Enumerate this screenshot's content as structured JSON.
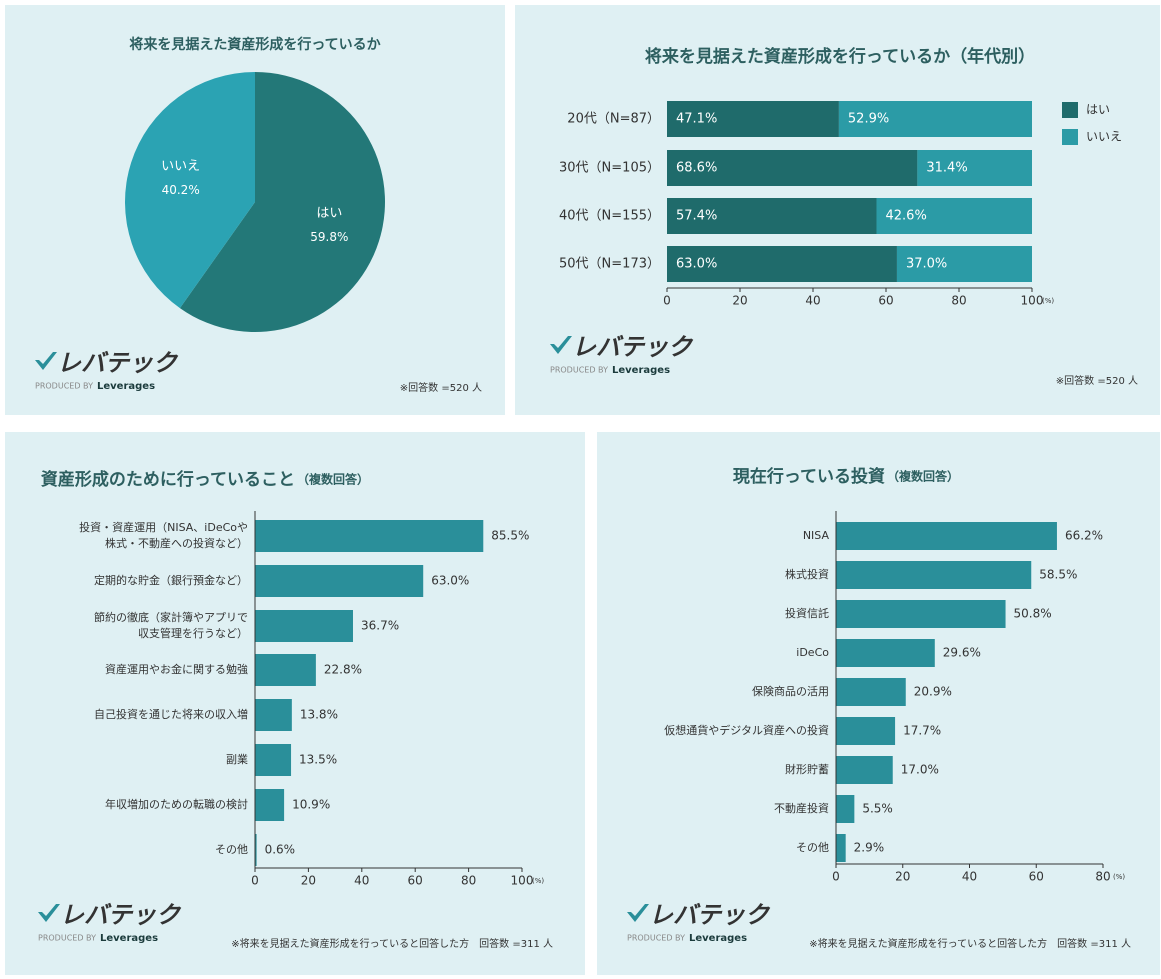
{
  "chart_data": [
    {
      "type": "pie",
      "title": "将来を見据えた資産形成を行っているか",
      "categories": [
        "はい",
        "いいえ"
      ],
      "values": [
        59.8,
        40.2
      ],
      "value_labels": [
        "59.8%",
        "40.2%"
      ],
      "colors": [
        "#237878",
        "#2ba3b3"
      ],
      "logo": "レバテック",
      "produced_by": "PRODUCED BY",
      "brand": "Leverages",
      "note": "※回答数 =520 人"
    },
    {
      "type": "stacked_barh",
      "title": "将来を見据えた資産形成を行っているか（年代別）",
      "categories": [
        "20代（N=87）",
        "30代（N=105）",
        "40代（N=155）",
        "50代（N=173）"
      ],
      "series": [
        {
          "name": "はい",
          "color": "#1f6b6b",
          "values": [
            47.1,
            68.6,
            57.4,
            63.0
          ],
          "value_labels": [
            "47.1%",
            "68.6%",
            "57.4%",
            "63.0%"
          ]
        },
        {
          "name": "いいえ",
          "color": "#2b9ba6",
          "values": [
            52.9,
            31.4,
            42.6,
            37.0
          ],
          "value_labels": [
            "52.9%",
            "31.4%",
            "42.6%",
            "37.0%"
          ]
        }
      ],
      "xlim": [
        0,
        100
      ],
      "xticks": [
        0,
        20,
        40,
        60,
        80,
        100
      ],
      "x_unit": "(%)",
      "legend": "right",
      "logo": "レバテック",
      "produced_by": "PRODUCED BY",
      "brand": "Leverages",
      "note": "※回答数 =520 人"
    },
    {
      "type": "barh",
      "title": "資産形成のために行っていること",
      "subtitle": "（複数回答）",
      "categories": [
        "投資・資産運用（NISA、iDeCoや\n株式・不動産への投資など）",
        "定期的な貯金（銀行預金など）",
        "節約の徹底（家計簿やアプリで\n収支管理を行うなど）",
        "資産運用やお金に関する勉強",
        "自己投資を通じた将来の収入増",
        "副業",
        "年収増加のための転職の検討",
        "その他"
      ],
      "values": [
        85.5,
        63.0,
        36.7,
        22.8,
        13.8,
        13.5,
        10.9,
        0.6
      ],
      "value_labels": [
        "85.5%",
        "63.0%",
        "36.7%",
        "22.8%",
        "13.8%",
        "13.5%",
        "10.9%",
        "0.6%"
      ],
      "color": "#2a8f9a",
      "xlim": [
        0,
        100
      ],
      "xticks": [
        0,
        20,
        40,
        60,
        80,
        100
      ],
      "x_unit": "(%)",
      "logo": "レバテック",
      "produced_by": "PRODUCED BY",
      "brand": "Leverages",
      "note": "※将来を見据えた資産形成を行っていると回答した方　回答数 =311 人"
    },
    {
      "type": "barh",
      "title": "現在行っている投資",
      "subtitle": "（複数回答）",
      "categories": [
        "NISA",
        "株式投資",
        "投資信託",
        "iDeCo",
        "保険商品の活用",
        "仮想通貨やデジタル資産への投資",
        "財形貯蓄",
        "不動産投資",
        "その他"
      ],
      "values": [
        66.2,
        58.5,
        50.8,
        29.6,
        20.9,
        17.7,
        17.0,
        5.5,
        2.9
      ],
      "value_labels": [
        "66.2%",
        "58.5%",
        "50.8%",
        "29.6%",
        "20.9%",
        "17.7%",
        "17.0%",
        "5.5%",
        "2.9%"
      ],
      "color": "#2a8f9a",
      "xlim": [
        0,
        80
      ],
      "xticks": [
        0,
        20,
        40,
        60,
        80
      ],
      "x_unit": "(%)",
      "logo": "レバテック",
      "produced_by": "PRODUCED BY",
      "brand": "Leverages",
      "note": "※将来を見据えた資産形成を行っていると回答した方　回答数 =311 人"
    }
  ]
}
